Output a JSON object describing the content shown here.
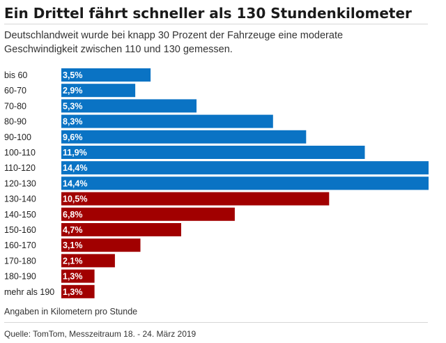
{
  "title": "Ein Drittel fährt schneller als 130 Stundenkilometer",
  "subtitle": {
    "line1": "Deutschlandweit wurde bei knapp 30 Prozent der Fahrzeuge eine moderate",
    "line2": "Geschwindigkeit zwischen 110 und 130 gemessen."
  },
  "unit_note": "Angaben in Kilometern pro Stunde",
  "source": "Quelle: TomTom, Messzeitraum 18. - 24. März 2019",
  "colors": {
    "up_to_130": "#0a73c4",
    "above_130": "#a10000"
  },
  "chart_data": {
    "type": "bar",
    "orientation": "horizontal",
    "categories": [
      "bis 60",
      "60-70",
      "70-80",
      "80-90",
      "90-100",
      "100-110",
      "110-120",
      "120-130",
      "130-140",
      "140-150",
      "150-160",
      "160-170",
      "170-180",
      "180-190",
      "mehr als 190"
    ],
    "values": [
      3.5,
      2.9,
      5.3,
      8.3,
      9.6,
      11.9,
      14.4,
      14.4,
      10.5,
      6.8,
      4.7,
      3.1,
      2.1,
      1.3,
      1.3
    ],
    "value_labels": [
      "3,5%",
      "2,9%",
      "5,3%",
      "8,3%",
      "9,6%",
      "11,9%",
      "14,4%",
      "14,4%",
      "10,5%",
      "6,8%",
      "4,7%",
      "3,1%",
      "2,1%",
      "1,3%",
      "1,3%"
    ],
    "color_groups": [
      "up_to_130",
      "up_to_130",
      "up_to_130",
      "up_to_130",
      "up_to_130",
      "up_to_130",
      "up_to_130",
      "up_to_130",
      "above_130",
      "above_130",
      "above_130",
      "above_130",
      "above_130",
      "above_130",
      "above_130"
    ],
    "unit": "%",
    "xlim": [
      0,
      14.4
    ],
    "grid": false,
    "legend": "none"
  }
}
